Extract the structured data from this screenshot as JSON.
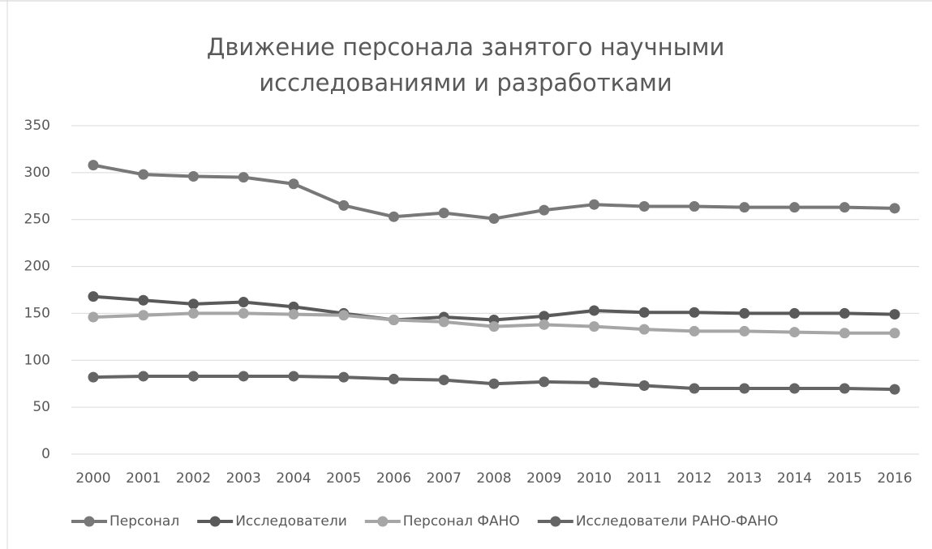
{
  "chart_data": {
    "type": "line",
    "title": "Движение персонала занятого научными исследованиями и разработками",
    "categories": [
      "2000",
      "2001",
      "2002",
      "2003",
      "2004",
      "2005",
      "2006",
      "2007",
      "2008",
      "2009",
      "2010",
      "2011",
      "2012",
      "2013",
      "2014",
      "2015",
      "2016"
    ],
    "series": [
      {
        "name": "Персонал",
        "color": "#787878",
        "values": [
          308,
          298,
          296,
          295,
          288,
          265,
          253,
          257,
          251,
          260,
          266,
          264,
          264,
          263,
          263,
          263,
          262
        ]
      },
      {
        "name": "Исследователи",
        "color": "#5a5a5a",
        "values": [
          168,
          164,
          160,
          162,
          157,
          150,
          143,
          146,
          143,
          147,
          153,
          151,
          151,
          150,
          150,
          150,
          149
        ]
      },
      {
        "name": "Персонал ФАНО",
        "color": "#a6a6a6",
        "values": [
          146,
          148,
          150,
          150,
          149,
          148,
          143,
          141,
          136,
          138,
          136,
          133,
          131,
          131,
          130,
          129,
          129
        ]
      },
      {
        "name": "Исследователи РАНО-ФАНО",
        "color": "#656565",
        "values": [
          82,
          83,
          83,
          83,
          83,
          82,
          80,
          79,
          75,
          77,
          76,
          73,
          70,
          70,
          70,
          70,
          69
        ]
      }
    ],
    "ylim": [
      0,
      350
    ],
    "yticks": [
      0,
      50,
      100,
      150,
      200,
      250,
      300,
      350
    ],
    "grid": true,
    "legend": "bottom"
  }
}
